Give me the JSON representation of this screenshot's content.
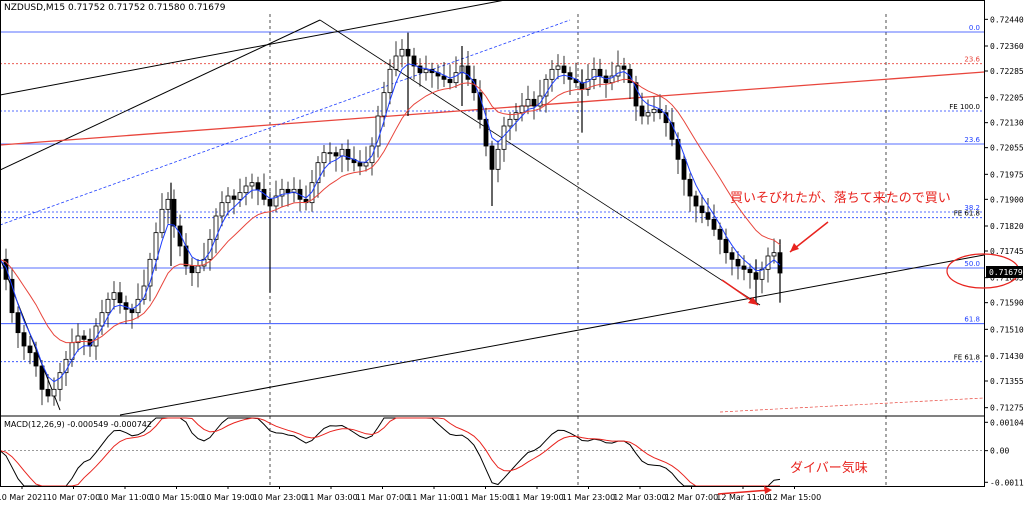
{
  "header": {
    "symbol_info": "NZDUSD,M15  0.71752 0.71752 0.71580 0.71679"
  },
  "macd_header": "MACD(12,26,9) -0.000549 -0.000742",
  "colors": {
    "candle": "#000000",
    "ma_fast": "#1f3fff",
    "ma_slow": "#e8453c",
    "fib": "#1f3fff",
    "fib_orange": "#e8453c",
    "annotation": "#e8231e",
    "macd_signal": "#e8231e",
    "macd_main": "#000000",
    "grid": "#000000",
    "price_tag_bg": "#000000"
  },
  "annotations": {
    "main_note": "買いそびれたが、落ちて来たので買い",
    "macd_note": "ダイバー気味"
  },
  "price_tag": "0.71679",
  "chart_data": [
    {
      "type": "candlestick",
      "title": "NZDUSD,M15",
      "price_axis": {
        "ylim": [
          0.71256,
          0.72456
        ],
        "ticks": [
          "0.72440",
          "0.72360",
          "0.72285",
          "0.72205",
          "0.72130",
          "0.72055",
          "0.71975",
          "0.71900",
          "0.71820",
          "0.71745",
          "0.71665",
          "0.71590",
          "0.71510",
          "0.71430",
          "0.71355",
          "0.71275"
        ]
      },
      "time_axis": {
        "labels": [
          "10 Mar 2021",
          "10 Mar 07:00",
          "10 Mar 11:00",
          "10 Mar 15:00",
          "10 Mar 19:00",
          "10 Mar 23:00",
          "11 Mar 03:00",
          "11 Mar 07:00",
          "11 Mar 11:00",
          "11 Mar 15:00",
          "11 Mar 19:00",
          "11 Mar 23:00",
          "12 Mar 03:00",
          "12 Mar 07:00",
          "12 Mar 11:00",
          "12 Mar 15:00"
        ]
      },
      "fib_levels": [
        {
          "label": "0.0",
          "price": 0.72402
        },
        {
          "label": "23.6",
          "price": 0.72307
        },
        {
          "label": "FE 100.0",
          "price": 0.72165
        },
        {
          "label": "23.6",
          "price": 0.72066
        },
        {
          "label": "38.2",
          "price": 0.71862
        },
        {
          "label": "FE 61.8",
          "price": 0.71845
        },
        {
          "label": "50.0",
          "price": 0.71694
        },
        {
          "label": "61.8",
          "price": 0.71527
        },
        {
          "label": "FE 61.8",
          "price": 0.71413
        }
      ],
      "price_path": [
        [
          0,
          0.7172
        ],
        [
          6,
          0.7166
        ],
        [
          12,
          0.7156
        ],
        [
          18,
          0.715
        ],
        [
          24,
          0.7146
        ],
        [
          30,
          0.7144
        ],
        [
          36,
          0.714
        ],
        [
          42,
          0.7133
        ],
        [
          48,
          0.7131
        ],
        [
          54,
          0.7133
        ],
        [
          60,
          0.7138
        ],
        [
          66,
          0.7142
        ],
        [
          72,
          0.7147
        ],
        [
          78,
          0.7149
        ],
        [
          84,
          0.7148
        ],
        [
          90,
          0.7146
        ],
        [
          96,
          0.7152
        ],
        [
          102,
          0.7156
        ],
        [
          108,
          0.716
        ],
        [
          114,
          0.7162
        ],
        [
          120,
          0.7159
        ],
        [
          126,
          0.7157
        ],
        [
          132,
          0.7156
        ],
        [
          138,
          0.716
        ],
        [
          144,
          0.7164
        ],
        [
          150,
          0.7172
        ],
        [
          156,
          0.718
        ],
        [
          162,
          0.7187
        ],
        [
          168,
          0.719
        ],
        [
          174,
          0.7182
        ],
        [
          180,
          0.7176
        ],
        [
          186,
          0.717
        ],
        [
          192,
          0.7168
        ],
        [
          198,
          0.717
        ],
        [
          204,
          0.7172
        ],
        [
          210,
          0.7178
        ],
        [
          216,
          0.7185
        ],
        [
          222,
          0.7189
        ],
        [
          228,
          0.7191
        ],
        [
          234,
          0.719
        ],
        [
          240,
          0.7192
        ],
        [
          246,
          0.7194
        ],
        [
          252,
          0.7195
        ],
        [
          258,
          0.7193
        ],
        [
          264,
          0.719
        ],
        [
          270,
          0.7188
        ],
        [
          276,
          0.7191
        ],
        [
          282,
          0.7193
        ],
        [
          288,
          0.7192
        ],
        [
          294,
          0.7193
        ],
        [
          300,
          0.719
        ],
        [
          306,
          0.7189
        ],
        [
          312,
          0.7195
        ],
        [
          318,
          0.7201
        ],
        [
          324,
          0.7204
        ],
        [
          330,
          0.7204
        ],
        [
          336,
          0.7203
        ],
        [
          342,
          0.7205
        ],
        [
          348,
          0.7202
        ],
        [
          354,
          0.7201
        ],
        [
          360,
          0.72
        ],
        [
          366,
          0.7201
        ],
        [
          372,
          0.7206
        ],
        [
          378,
          0.7215
        ],
        [
          384,
          0.7222
        ],
        [
          390,
          0.7229
        ],
        [
          396,
          0.7233
        ],
        [
          402,
          0.7235
        ],
        [
          408,
          0.7233
        ],
        [
          414,
          0.723
        ],
        [
          420,
          0.7228
        ],
        [
          426,
          0.7229
        ],
        [
          432,
          0.7228
        ],
        [
          438,
          0.7227
        ],
        [
          444,
          0.7226
        ],
        [
          450,
          0.7225
        ],
        [
          456,
          0.7228
        ],
        [
          462,
          0.723
        ],
        [
          468,
          0.7226
        ],
        [
          474,
          0.7222
        ],
        [
          480,
          0.7214
        ],
        [
          486,
          0.7206
        ],
        [
          492,
          0.7199
        ],
        [
          498,
          0.7205
        ],
        [
          504,
          0.7212
        ],
        [
          510,
          0.7214
        ],
        [
          516,
          0.7216
        ],
        [
          522,
          0.7218
        ],
        [
          528,
          0.722
        ],
        [
          534,
          0.7218
        ],
        [
          540,
          0.7221
        ],
        [
          546,
          0.7226
        ],
        [
          552,
          0.7229
        ],
        [
          558,
          0.723
        ],
        [
          564,
          0.7228
        ],
        [
          570,
          0.7226
        ],
        [
          576,
          0.7225
        ],
        [
          582,
          0.7223
        ],
        [
          588,
          0.7226
        ],
        [
          594,
          0.7229
        ],
        [
          600,
          0.7227
        ],
        [
          606,
          0.7225
        ],
        [
          612,
          0.7227
        ],
        [
          618,
          0.723
        ],
        [
          624,
          0.7229
        ],
        [
          630,
          0.7225
        ],
        [
          636,
          0.7218
        ],
        [
          642,
          0.7215
        ],
        [
          648,
          0.7216
        ],
        [
          654,
          0.7217
        ],
        [
          660,
          0.7216
        ],
        [
          666,
          0.7213
        ],
        [
          672,
          0.7208
        ],
        [
          678,
          0.7202
        ],
        [
          684,
          0.7196
        ],
        [
          690,
          0.7191
        ],
        [
          696,
          0.7188
        ],
        [
          702,
          0.7186
        ],
        [
          708,
          0.7184
        ],
        [
          714,
          0.7181
        ],
        [
          720,
          0.7178
        ],
        [
          726,
          0.7174
        ],
        [
          732,
          0.7172
        ],
        [
          738,
          0.717
        ],
        [
          744,
          0.7169
        ],
        [
          750,
          0.7168
        ],
        [
          756,
          0.7166
        ],
        [
          762,
          0.7169
        ],
        [
          768,
          0.7173
        ],
        [
          774,
          0.7174
        ],
        [
          780,
          0.71679
        ]
      ],
      "wicks": [
        {
          "x": 171,
          "low": 0.717,
          "high": 0.7195
        },
        {
          "x": 270,
          "low": 0.7162,
          "high": 0.7188
        },
        {
          "x": 408,
          "low": 0.7215,
          "high": 0.724
        },
        {
          "x": 462,
          "low": 0.7218,
          "high": 0.7236
        },
        {
          "x": 492,
          "low": 0.7188,
          "high": 0.7205
        },
        {
          "x": 582,
          "low": 0.721,
          "high": 0.7229
        },
        {
          "x": 756,
          "low": 0.7159,
          "high": 0.7172
        },
        {
          "x": 780,
          "low": 0.7159,
          "high": 0.7178
        }
      ]
    },
    {
      "type": "line",
      "title": "MACD(12,26,9)",
      "yaxis_ticks": [
        "0.001042",
        "0.00",
        "-0.001164"
      ],
      "ylim": [
        -0.0013,
        0.0012
      ]
    }
  ]
}
